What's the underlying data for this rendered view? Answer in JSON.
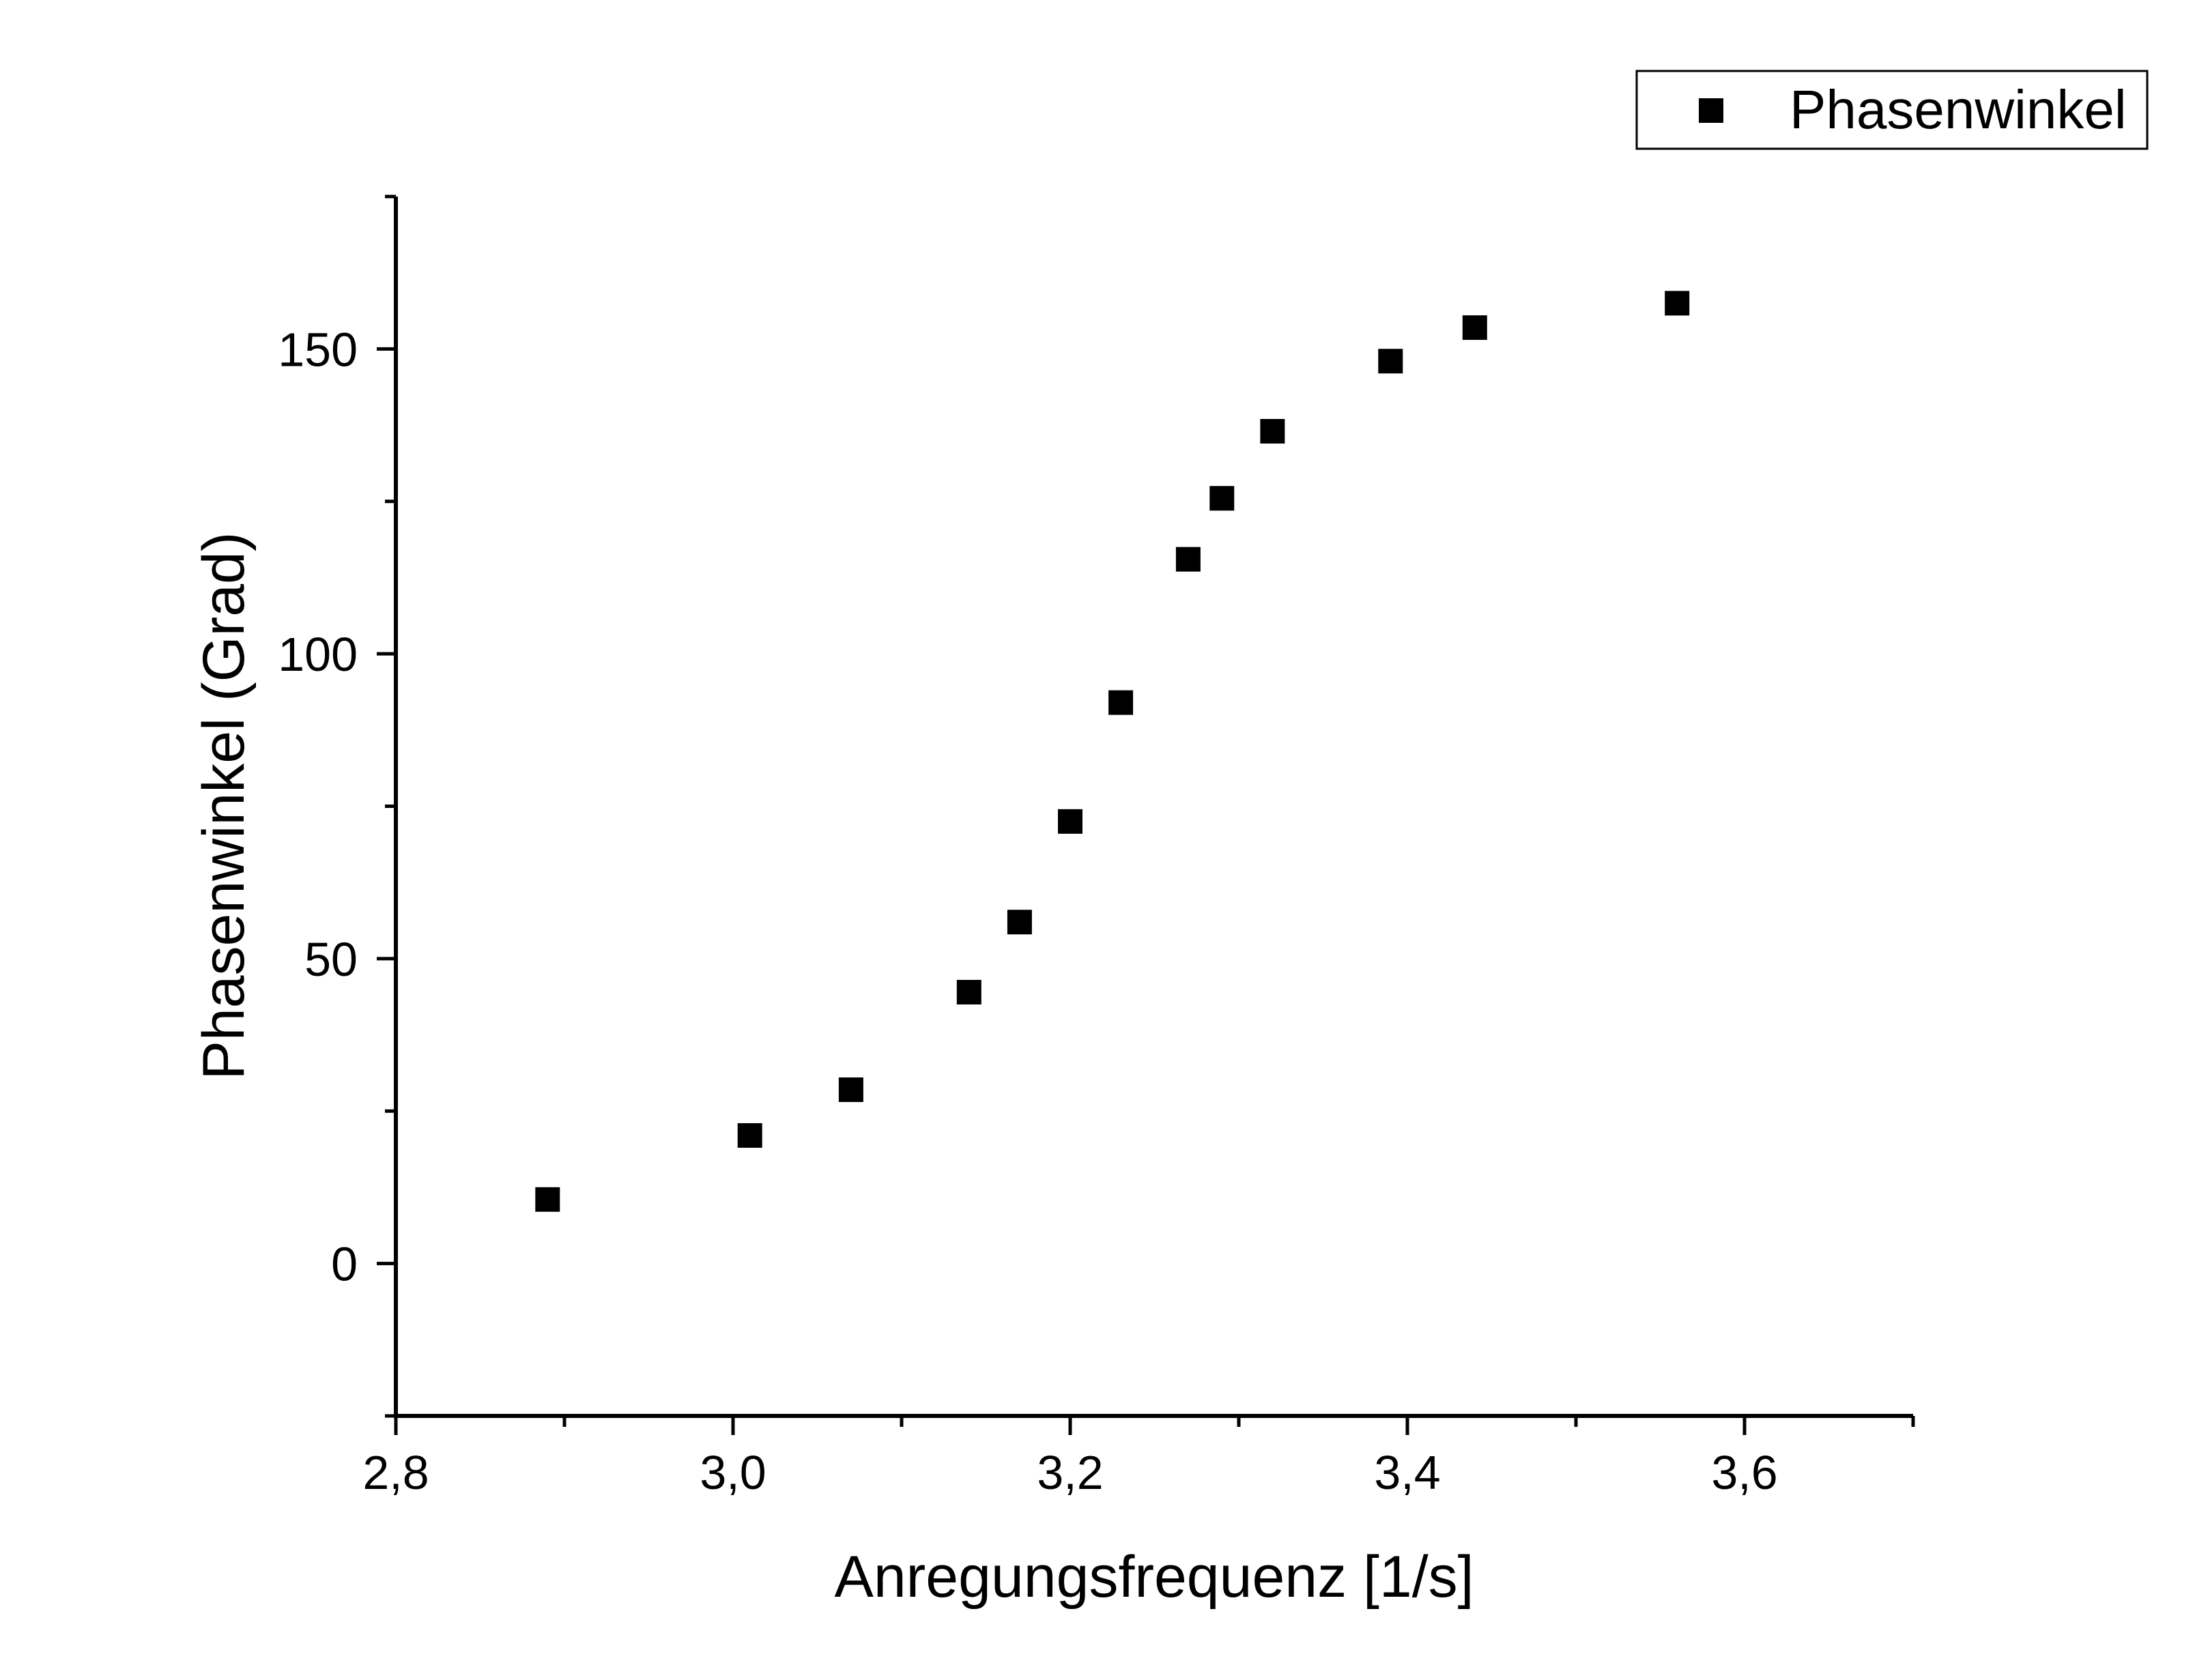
{
  "chart_data": {
    "type": "scatter",
    "xlabel": "Anregungsfrequenz [1/s]",
    "ylabel": "Phasenwinkel (Grad)",
    "xlim": [
      2.8,
      3.7
    ],
    "ylim": [
      -25,
      175
    ],
    "x_major_ticks": [
      2.8,
      3.0,
      3.2,
      3.4,
      3.6
    ],
    "x_tick_labels": [
      "2,8",
      "3,0",
      "3,2",
      "3,4",
      "3,6"
    ],
    "x_minor_ticks": [
      2.9,
      3.1,
      3.3,
      3.5,
      3.7
    ],
    "y_major_ticks": [
      0,
      50,
      100,
      150
    ],
    "y_tick_labels": [
      "0",
      "50",
      "100",
      "150"
    ],
    "y_minor_ticks": [
      -25,
      25,
      75,
      125,
      175
    ],
    "grid": false,
    "legend_position": "top-right",
    "marker": "square",
    "color": "#000000",
    "series": [
      {
        "name": "Phasenwinkel",
        "x": [
          2.89,
          3.01,
          3.07,
          3.14,
          3.17,
          3.2,
          3.23,
          3.27,
          3.29,
          3.32,
          3.39,
          3.44,
          3.56
        ],
        "y": [
          10.5,
          21,
          28.5,
          44.5,
          56,
          72.5,
          92,
          115.5,
          125.5,
          136.5,
          148,
          153.5,
          157.5
        ]
      }
    ]
  }
}
